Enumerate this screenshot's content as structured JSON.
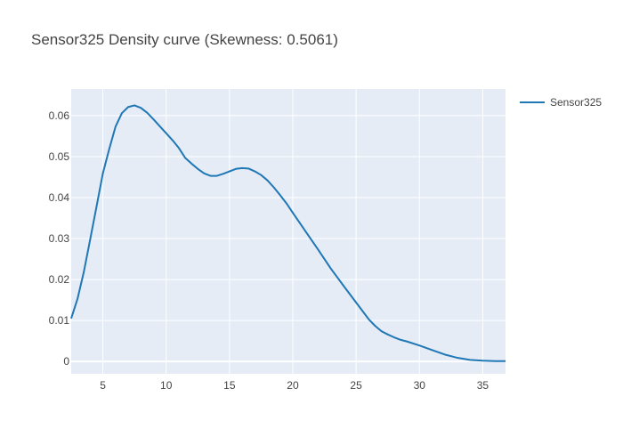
{
  "chart_data": {
    "type": "line",
    "title": "Sensor325 Density curve (Skewness: 0.5061)",
    "xlabel": "",
    "ylabel": "",
    "xlim": [
      2.5,
      36.8
    ],
    "ylim": [
      -0.003,
      0.0665
    ],
    "x_ticks": [
      "5",
      "10",
      "15",
      "20",
      "25",
      "30",
      "35"
    ],
    "y_ticks": [
      "0",
      "0.01",
      "0.02",
      "0.03",
      "0.04",
      "0.05",
      "0.06"
    ],
    "grid": true,
    "legend_position": "top-right",
    "series": [
      {
        "name": "Sensor325",
        "color": "#1f77b4",
        "x": [
          2.5,
          3.0,
          3.5,
          4.0,
          4.5,
          5.0,
          5.5,
          6.0,
          6.5,
          7.0,
          7.5,
          8.0,
          8.5,
          9.0,
          9.5,
          10.0,
          10.5,
          11.0,
          11.5,
          12.0,
          12.5,
          13.0,
          13.5,
          14.0,
          14.5,
          15.0,
          15.5,
          16.0,
          16.5,
          17.0,
          17.5,
          18.0,
          18.5,
          19.0,
          19.5,
          20.0,
          21.0,
          22.0,
          23.0,
          24.0,
          25.0,
          26.0,
          26.5,
          27.0,
          27.5,
          28.0,
          28.5,
          29.0,
          30.0,
          31.0,
          32.0,
          33.0,
          34.0,
          35.0,
          36.0,
          36.8
        ],
        "values": [
          0.0105,
          0.0153,
          0.0219,
          0.0298,
          0.0378,
          0.0459,
          0.0518,
          0.0573,
          0.0606,
          0.0621,
          0.0625,
          0.0619,
          0.0607,
          0.0591,
          0.0574,
          0.0557,
          0.054,
          0.0521,
          0.0497,
          0.0483,
          0.047,
          0.0459,
          0.0453,
          0.0453,
          0.0458,
          0.0464,
          0.047,
          0.0472,
          0.0471,
          0.0464,
          0.0455,
          0.0442,
          0.0425,
          0.0406,
          0.0386,
          0.0363,
          0.0318,
          0.0273,
          0.0227,
          0.0185,
          0.0144,
          0.0103,
          0.0087,
          0.0074,
          0.0066,
          0.0059,
          0.0053,
          0.0049,
          0.0039,
          0.0028,
          0.0017,
          0.0009,
          0.0004,
          0.0002,
          0.0001,
          0.0001
        ]
      }
    ]
  }
}
